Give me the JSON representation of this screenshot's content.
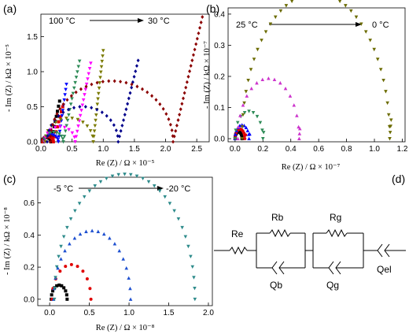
{
  "panels": [
    {
      "letter": "(a)",
      "temp_start": "100 °C",
      "temp_end": "30 °C",
      "xlabel": "Re (Z) / Ω × 10⁻⁵",
      "ylabel": "- Im (Z) / kΩ × 10⁻⁵"
    },
    {
      "letter": "(b)",
      "temp_start": "25 °C",
      "temp_end": "0 °C",
      "xlabel": "Re (Z) / Ω × 10⁻⁷",
      "ylabel": "- Im (Z) / kΩ × 10⁻⁷"
    },
    {
      "letter": "(c)",
      "temp_start": "-5 °C",
      "temp_end": "-20 °C",
      "xlabel": "Re (Z) / Ω × 10⁻⁸",
      "ylabel": "- Im (Z) / kΩ × 10⁻⁸"
    },
    {
      "letter": "(d)"
    }
  ],
  "circuit": {
    "labels": [
      "Re",
      "Rb",
      "Qb",
      "Rg",
      "Qg",
      "Qel"
    ]
  },
  "chart_data": [
    {
      "type": "scatter",
      "xlim": [
        0,
        2.7
      ],
      "ylim": [
        0,
        1.82
      ],
      "xticks": [
        "0.0",
        "0.5",
        "1.0",
        "1.5",
        "2.0",
        "2.5"
      ],
      "xtick_values": [
        0,
        0.5,
        1.0,
        1.5,
        2.0,
        2.5
      ],
      "yticks": [
        "0.0",
        "0.5",
        "1.0",
        "1.5"
      ],
      "ytick_values": [
        0,
        0.5,
        1.0,
        1.5
      ],
      "grid": false,
      "series": [
        {
          "color": "#000000",
          "marker": "square",
          "arc_start": 0.02,
          "arc_end": 0.16,
          "tail_end_x": 0.3,
          "tail_end_y": 0.58
        },
        {
          "color": "#e00000",
          "marker": "square",
          "arc_start": 0.03,
          "arc_end": 0.2,
          "tail_end_x": 0.35,
          "tail_end_y": 0.5
        },
        {
          "color": "#0000ff",
          "marker": "triangle-down",
          "arc_start": 0.05,
          "arc_end": 0.28,
          "tail_end_x": 0.41,
          "tail_end_y": 0.82
        },
        {
          "color": "#2e8b57",
          "marker": "triangle-down",
          "arc_start": 0.05,
          "arc_end": 0.36,
          "tail_end_x": 0.62,
          "tail_end_y": 1.15
        },
        {
          "color": "#ff00ff",
          "marker": "triangle-down",
          "arc_start": 0.06,
          "arc_end": 0.55,
          "tail_end_x": 0.8,
          "tail_end_y": 1.12
        },
        {
          "color": "#7a7a00",
          "marker": "triangle-down",
          "arc_start": 0.07,
          "arc_end": 0.84,
          "tail_end_x": 1.0,
          "tail_end_y": 1.3
        },
        {
          "color": "#00008b",
          "marker": "diamond",
          "arc_start": 0.1,
          "arc_end": 1.24,
          "tail_end_x": 1.56,
          "tail_end_y": 1.16
        },
        {
          "color": "#8b0000",
          "marker": "diamond",
          "arc_start": 0.15,
          "arc_end": 2.12,
          "tail_end_x": 2.59,
          "tail_end_y": 1.78
        }
      ]
    },
    {
      "type": "scatter",
      "xlim": [
        -0.05,
        1.22
      ],
      "ylim": [
        -0.01,
        0.42
      ],
      "xticks": [
        "0.0",
        "0.2",
        "0.4",
        "0.6",
        "0.8",
        "1.0",
        "1.2"
      ],
      "xtick_values": [
        0,
        0.2,
        0.4,
        0.6,
        0.8,
        1.0,
        1.2
      ],
      "yticks": [
        "0.0",
        "0.1",
        "0.2",
        "0.3",
        "0.4"
      ],
      "ytick_values": [
        0,
        0.1,
        0.2,
        0.3,
        0.4
      ],
      "grid": false,
      "series": [
        {
          "color": "#000000",
          "marker": "square",
          "arc_start": 0.0,
          "arc_end": 0.05,
          "tail_end_x": 0.055,
          "tail_end_y": 0.008
        },
        {
          "color": "#e00000",
          "marker": "circle",
          "arc_start": 0.0,
          "arc_end": 0.07,
          "tail_end_x": 0.075,
          "tail_end_y": 0.012
        },
        {
          "color": "#0000ff",
          "marker": "triangle-up",
          "arc_start": 0.0,
          "arc_end": 0.1,
          "tail_end_x": 0.105,
          "tail_end_y": 0.015
        },
        {
          "color": "#2e8b57",
          "marker": "triangle-down",
          "arc_start": 0.0,
          "arc_end": 0.2,
          "tail_end_x": 0.205,
          "tail_end_y": 0.02
        },
        {
          "color": "#cc33cc",
          "marker": "triangle-up",
          "arc_start": 0.02,
          "arc_end": 0.46,
          "tail_end_x": 0.465,
          "tail_end_y": 0.032
        },
        {
          "color": "#6b6b00",
          "marker": "triangle-down",
          "arc_start": 0.05,
          "arc_end": 1.11,
          "tail_end_x": 1.12,
          "tail_end_y": 0.06
        }
      ]
    },
    {
      "type": "scatter",
      "xlim": [
        -0.15,
        2.05
      ],
      "ylim": [
        -0.04,
        0.76
      ],
      "xticks": [
        "0.0",
        "0.5",
        "1.0",
        "1.5",
        "2.0"
      ],
      "xtick_values": [
        0,
        0.5,
        1.0,
        1.5,
        2.0
      ],
      "yticks": [
        "0.0",
        "0.2",
        "0.4",
        "0.6"
      ],
      "ytick_values": [
        0,
        0.2,
        0.4,
        0.6
      ],
      "grid": false,
      "series": [
        {
          "color": "#000000",
          "marker": "square",
          "arc_start": 0.02,
          "arc_end": 0.22,
          "tail_end_x": 0.22,
          "tail_end_y": 0.0
        },
        {
          "color": "#e00000",
          "marker": "circle",
          "arc_start": 0.03,
          "arc_end": 0.52,
          "tail_end_x": 0.52,
          "tail_end_y": 0.0
        },
        {
          "color": "#1e50d0",
          "marker": "triangle-up",
          "arc_start": 0.05,
          "arc_end": 1.02,
          "tail_end_x": 1.02,
          "tail_end_y": 0.0
        },
        {
          "color": "#2e8b8b",
          "marker": "triangle-down",
          "arc_start": 0.06,
          "arc_end": 1.83,
          "tail_end_x": 1.83,
          "tail_end_y": 0.0
        }
      ]
    }
  ]
}
